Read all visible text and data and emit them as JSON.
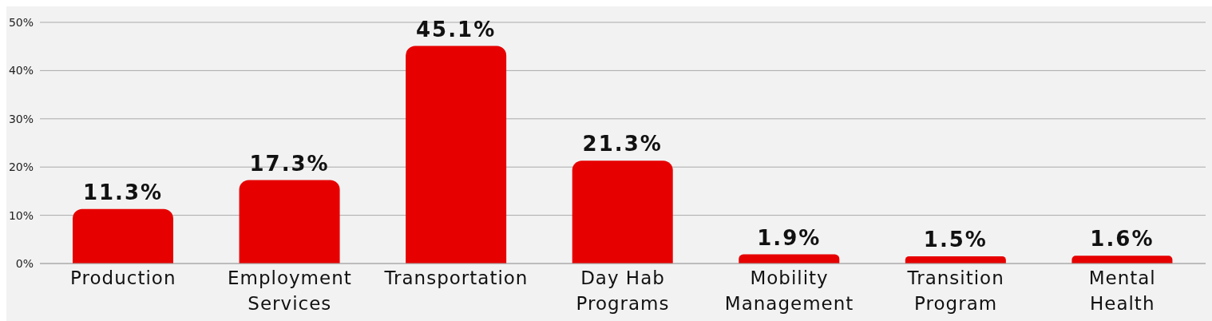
{
  "chart_data": {
    "type": "bar",
    "categories": [
      "Production",
      "Employment Services",
      "Transportation",
      "Day Hab Programs",
      "Mobility Management",
      "Transition Program",
      "Mental Health"
    ],
    "values": [
      11.3,
      17.3,
      45.1,
      21.3,
      1.9,
      1.5,
      1.6
    ],
    "value_labels": [
      "11.3%",
      "17.3%",
      "45.1%",
      "21.3%",
      "1.9%",
      "1.5%",
      "1.6%"
    ],
    "color": "#e60000",
    "ylim": [
      0,
      50
    ],
    "yticks": [
      {
        "value": 0,
        "label": "0%"
      },
      {
        "value": 10,
        "label": "10%"
      },
      {
        "value": 20,
        "label": "20%"
      },
      {
        "value": 30,
        "label": "30%"
      },
      {
        "value": 40,
        "label": "40%"
      },
      {
        "value": 50,
        "label": "50%"
      }
    ],
    "grid": "y"
  }
}
